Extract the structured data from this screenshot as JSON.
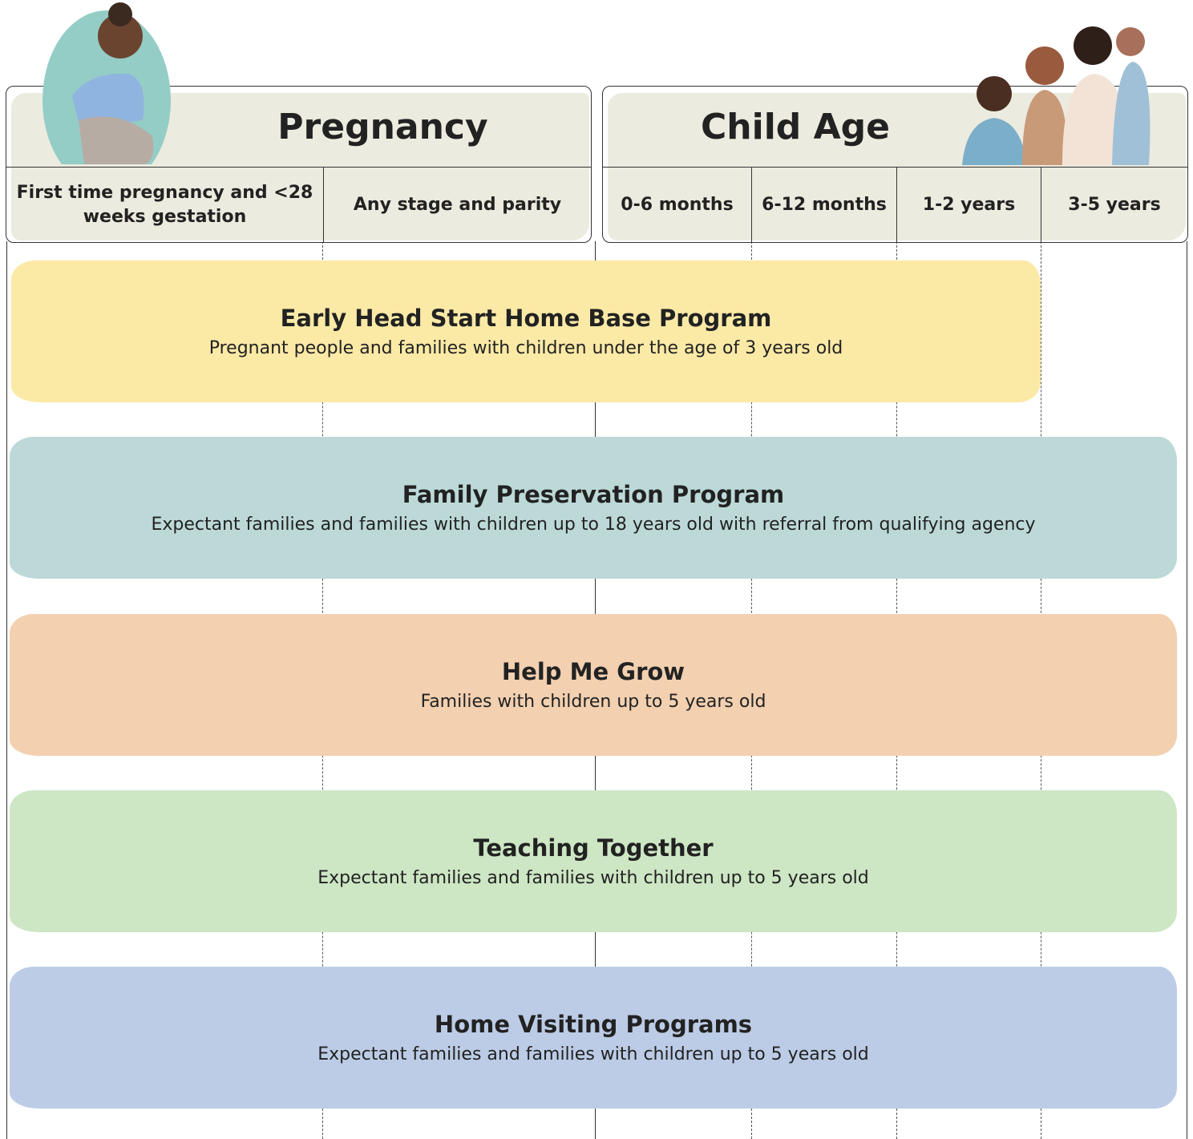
{
  "header": {
    "groups": [
      {
        "title": "Pregnancy",
        "columns": [
          "First time pregnancy and <28 weeks gestation",
          "Any stage and parity"
        ]
      },
      {
        "title": "Child Age",
        "columns": [
          "0-6 months",
          "6-12 months",
          "1-2 years",
          "3-5 years"
        ]
      }
    ]
  },
  "programs": [
    {
      "name": "Early Head Start Home Base Program",
      "description": "Pregnant people and families with children under the age of 3 years old"
    },
    {
      "name": "Family Preservation Program",
      "description": "Expectant families and families with children up to 18 years old with referral from qualifying agency"
    },
    {
      "name": "Help Me Grow",
      "description": "Families with children up to 5 years old"
    },
    {
      "name": "Teaching Together",
      "description": "Expectant families and families with children up to 5 years old"
    },
    {
      "name": "Home Visiting Programs",
      "description": "Expectant families and families with children up to 5 years old"
    }
  ]
}
